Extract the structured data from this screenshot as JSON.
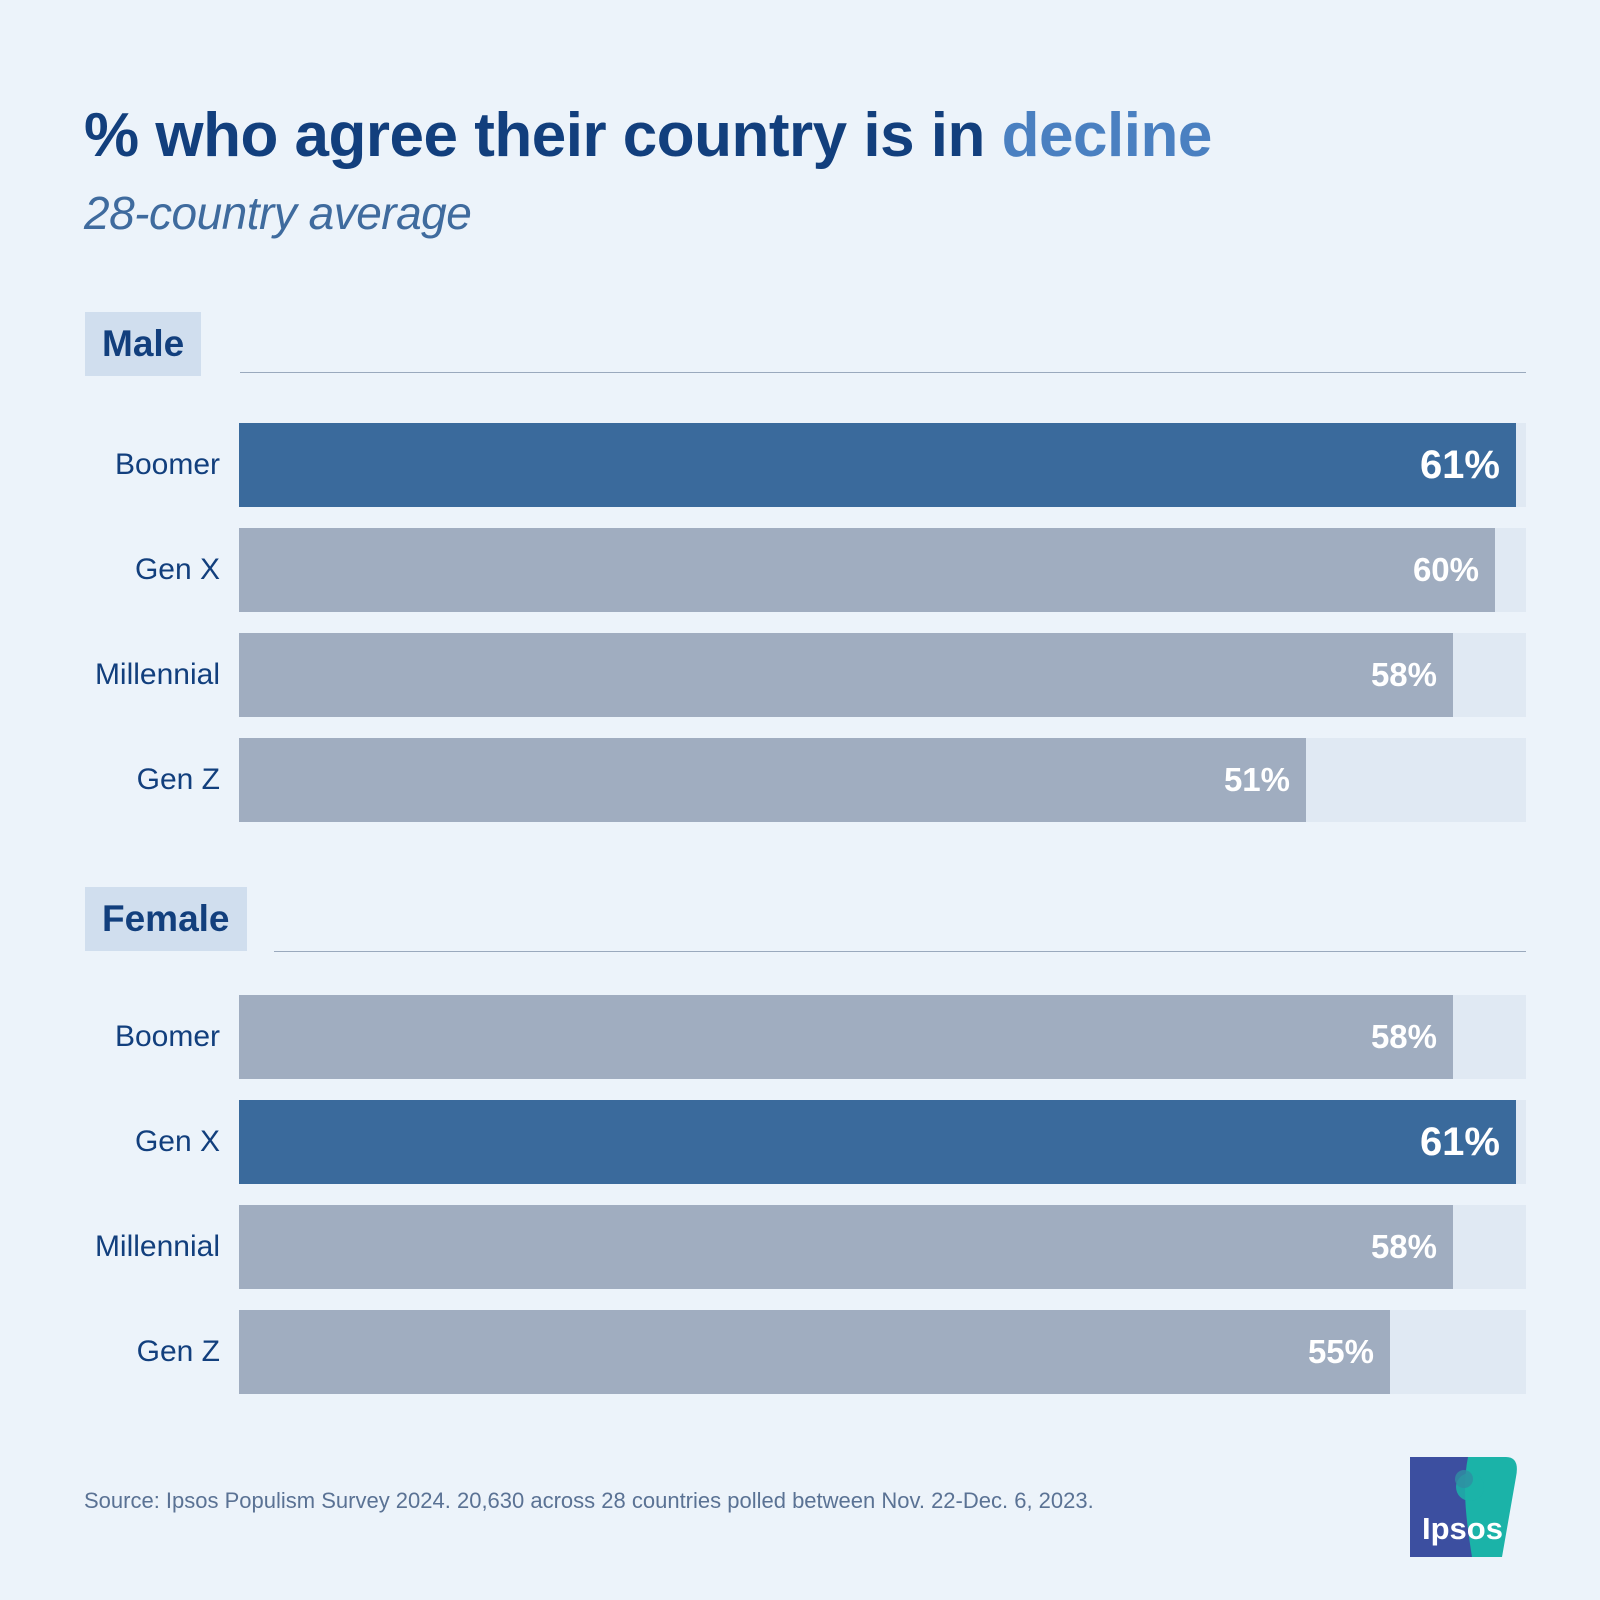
{
  "title": {
    "main": "% who agree their country is in",
    "accent": "decline"
  },
  "subtitle": "28-country average",
  "source": "Source: Ipsos Populism Survey 2024. 20,630 across 28 countries polled between Nov. 22-Dec. 6, 2023.",
  "logo": {
    "text": "Ipsos",
    "icon": "ipsos-logo-icon"
  },
  "colors": {
    "background": "#ecf3fa",
    "title": "#123f7d",
    "accent": "#4a80c1",
    "bar_default": "#a0adc0",
    "bar_highlight": "#3a6a9c",
    "track": "#e0e9f3"
  },
  "chart_data": {
    "type": "bar",
    "orientation": "horizontal",
    "title": "% who agree their country is in decline",
    "subtitle": "28-country average",
    "xlim": [
      0,
      100
    ],
    "grid": false,
    "groups": [
      {
        "name": "Male",
        "categories": [
          "Boomer",
          "Gen X",
          "Millennial",
          "Gen Z"
        ],
        "values": [
          61,
          60,
          58,
          51
        ],
        "labels": [
          "61%",
          "60%",
          "58%",
          "51%"
        ],
        "highlight": [
          true,
          false,
          false,
          false
        ]
      },
      {
        "name": "Female",
        "categories": [
          "Boomer",
          "Gen X",
          "Millennial",
          "Gen Z"
        ],
        "values": [
          58,
          61,
          58,
          55
        ],
        "labels": [
          "58%",
          "61%",
          "58%",
          "55%"
        ],
        "highlight": [
          false,
          true,
          false,
          false
        ]
      }
    ]
  }
}
